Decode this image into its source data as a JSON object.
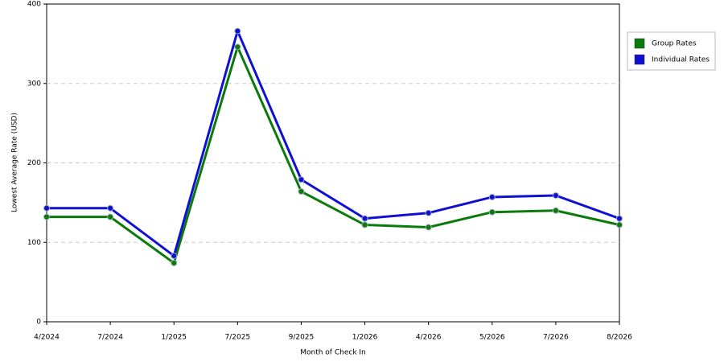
{
  "chart_data": {
    "type": "line",
    "x_label": "Month of Check In",
    "y_label": "Lowest Average Rate (USD)",
    "categories": [
      "4/2024",
      "7/2024",
      "1/2025",
      "7/2025",
      "9/2025",
      "1/2026",
      "4/2026",
      "5/2026",
      "7/2026",
      "8/2026"
    ],
    "series": [
      {
        "name": "Group Rates",
        "color": "#0a7a0a",
        "values": [
          132,
          132,
          74,
          346,
          164,
          122,
          119,
          138,
          140,
          122
        ]
      },
      {
        "name": "Individual Rates",
        "color": "#1010d0",
        "values": [
          143,
          143,
          83,
          366,
          179,
          130,
          137,
          157,
          159,
          130
        ]
      }
    ],
    "ylim": [
      0,
      400
    ],
    "yticks": [
      0,
      100,
      200,
      300,
      400
    ],
    "grid": true,
    "legend": "right"
  }
}
